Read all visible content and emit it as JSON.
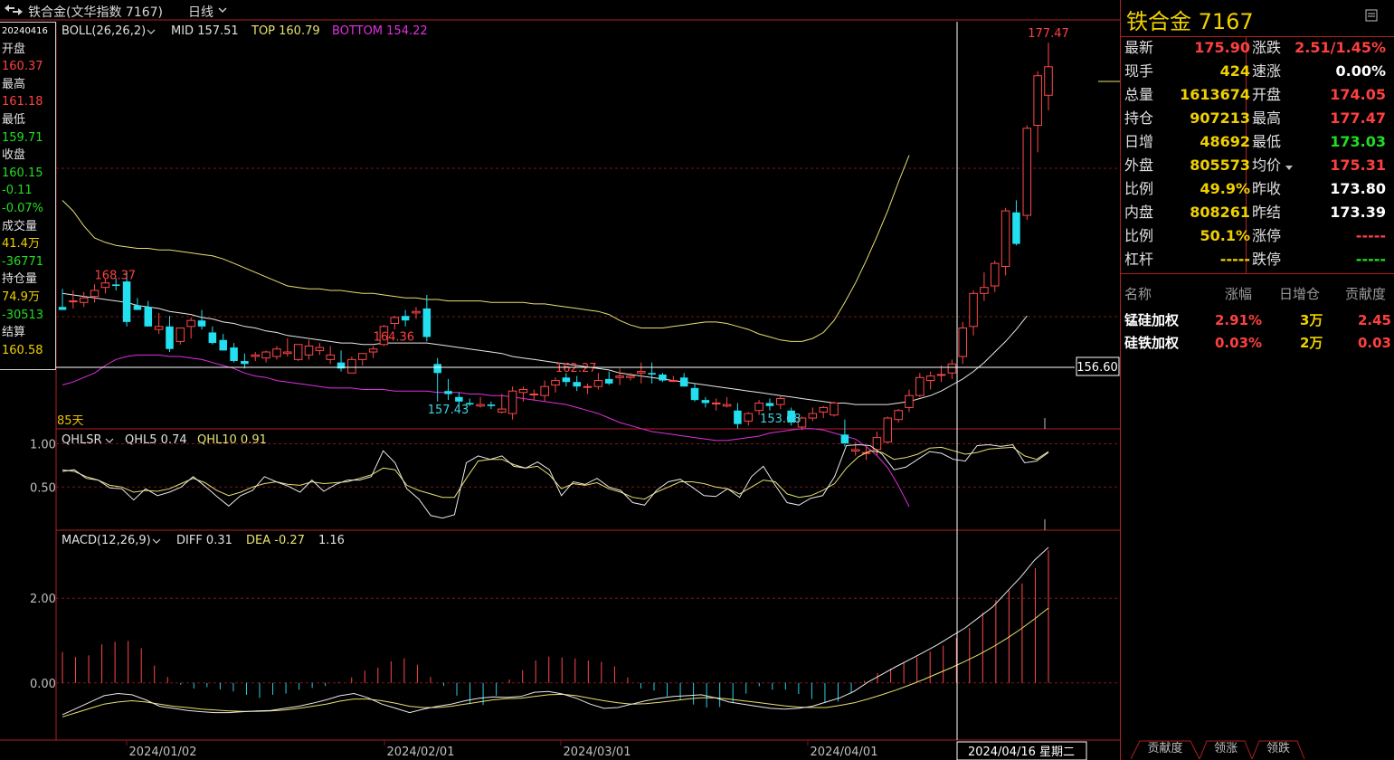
{
  "topbar": {
    "title": "铁合金(文华指数 7167)",
    "period": "日线",
    "period_icon": "chevron-down-icon"
  },
  "left_panel": [
    {
      "text": "20240416",
      "color": "#ffffff",
      "small": true
    },
    {
      "text": "开盘",
      "color": "#e0e0e0"
    },
    {
      "text": "160.37",
      "color": "#ff4040"
    },
    {
      "text": "最高",
      "color": "#e0e0e0"
    },
    {
      "text": "161.18",
      "color": "#ff4040"
    },
    {
      "text": "最低",
      "color": "#e0e0e0"
    },
    {
      "text": "159.71",
      "color": "#22dd22"
    },
    {
      "text": "收盘",
      "color": "#e0e0e0"
    },
    {
      "text": "160.15",
      "color": "#22dd22"
    },
    {
      "text": "-0.11",
      "color": "#22dd22"
    },
    {
      "text": "-0.07%",
      "color": "#22dd22"
    },
    {
      "text": "成交量",
      "color": "#e0e0e0"
    },
    {
      "text": "41.4万",
      "color": "#f0d000"
    },
    {
      "text": "-36771",
      "color": "#22dd22"
    },
    {
      "text": "持仓量",
      "color": "#e0e0e0"
    },
    {
      "text": "74.9万",
      "color": "#f0d000"
    },
    {
      "text": "-30513",
      "color": "#22dd22"
    },
    {
      "text": "结算",
      "color": "#e0e0e0"
    },
    {
      "text": "160.58",
      "color": "#f0d000"
    }
  ],
  "indicators": {
    "boll": {
      "name": "BOLL(26,26,2)",
      "mid": "MID 157.51",
      "top": "TOP 160.79",
      "bottom": "BOTTOM 154.22"
    },
    "qhlsr": {
      "name": "QHLSR",
      "qhl5": "QHL5 0.74",
      "qhl10": "QHL10 0.91"
    },
    "macd": {
      "name": "MACD(12,26,9)",
      "diff": "DIFF 0.31",
      "dea": "DEA -0.27",
      "macd": "1.16"
    }
  },
  "annotations": {
    "days": "85天",
    "crosshair_price": "156.60",
    "crosshair_date": "2024/04/16 星期二",
    "peaks": [
      "168.37",
      "164.36",
      "162.27",
      "177.47"
    ],
    "troughs": [
      "157.43",
      "153.68"
    ]
  },
  "axis": {
    "dates": [
      "2024/01/02",
      "2024/02/01",
      "2024/03/01",
      "2024/04/01"
    ],
    "qhlsr_ticks": [
      "1.00",
      "0.50"
    ],
    "macd_ticks": [
      "2.00",
      "0.00"
    ]
  },
  "quote": {
    "title": "铁合金  7167",
    "rows": [
      {
        "l": "最新",
        "lv": "175.90",
        "lc": "#ff4040",
        "r": "涨跌",
        "rv": "2.51/1.45%",
        "rc": "#ff4040"
      },
      {
        "l": "现手",
        "lv": "424",
        "lc": "#f0d000",
        "r": "速涨",
        "rv": "0.00%",
        "rc": "#ffffff"
      },
      {
        "l": "总量",
        "lv": "1613674",
        "lc": "#f0d000",
        "r": "开盘",
        "rv": "174.05",
        "rc": "#ff4040"
      },
      {
        "l": "持仓",
        "lv": "907213",
        "lc": "#f0d000",
        "r": "最高",
        "rv": "177.47",
        "rc": "#ff4040"
      },
      {
        "l": "日增",
        "lv": "48692",
        "lc": "#f0d000",
        "r": "最低",
        "rv": "173.03",
        "rc": "#22dd22"
      },
      {
        "l": "外盘",
        "lv": "805573",
        "lc": "#f0d000",
        "r": "均价",
        "rv": "175.31",
        "rc": "#ff4040"
      },
      {
        "l": "比例",
        "lv": "49.9%",
        "lc": "#f0d000",
        "r": "昨收",
        "rv": "173.80",
        "rc": "#ffffff"
      },
      {
        "l": "内盘",
        "lv": "808261",
        "lc": "#f0d000",
        "r": "昨结",
        "rv": "173.39",
        "rc": "#ffffff"
      },
      {
        "l": "比例",
        "lv": "50.1%",
        "lc": "#f0d000",
        "r": "涨停",
        "rv": "-----",
        "rc": "#ff4040"
      },
      {
        "l": "杠杆",
        "lv": "-----",
        "lc": "#f0d000",
        "r": "跌停",
        "rv": "-----",
        "rc": "#22dd22"
      }
    ],
    "avg_icon": "caret-down-icon"
  },
  "contrib": {
    "headers": [
      "名称",
      "涨幅",
      "日增仓",
      "贡献度"
    ],
    "rows": [
      {
        "name": "锰硅加权",
        "chg": "2.91%",
        "oi": "3万",
        "c": "2.45"
      },
      {
        "name": "硅铁加权",
        "chg": "0.03%",
        "oi": "2万",
        "c": "0.03"
      }
    ]
  },
  "tabs": [
    "贡献度",
    "领涨",
    "领跌"
  ],
  "chart_data": {
    "type": "candlestick",
    "title": "铁合金(文华指数 7167) 日线",
    "price_ylim": [
      151.9,
      178.9
    ],
    "candles": [
      [
        159.9,
        161.1,
        159.7,
        159.7
      ],
      [
        160.3,
        161.0,
        159.8,
        160.3
      ],
      [
        160.2,
        160.9,
        159.9,
        160.5
      ],
      [
        160.6,
        161.4,
        160.2,
        161.0
      ],
      [
        161.2,
        161.8,
        160.8,
        161.5
      ],
      [
        161.4,
        161.8,
        161.0,
        161.3
      ],
      [
        161.6,
        162.3,
        158.6,
        158.9
      ],
      [
        160.0,
        160.5,
        159.7,
        159.7
      ],
      [
        159.9,
        160.3,
        158.6,
        158.6
      ],
      [
        158.4,
        159.5,
        158.1,
        158.6
      ],
      [
        158.6,
        159.3,
        156.9,
        157.1
      ],
      [
        157.6,
        158.5,
        157.4,
        158.5
      ],
      [
        158.6,
        159.2,
        157.8,
        159.0
      ],
      [
        159.0,
        159.7,
        158.4,
        158.6
      ],
      [
        158.2,
        158.6,
        157.4,
        157.5
      ],
      [
        157.7,
        158.1,
        157.0,
        157.0
      ],
      [
        157.2,
        157.5,
        156.2,
        156.3
      ],
      [
        156.3,
        156.8,
        155.8,
        156.1
      ],
      [
        156.6,
        156.9,
        156.3,
        156.7
      ],
      [
        156.5,
        157.0,
        156.2,
        156.9
      ],
      [
        156.6,
        157.3,
        156.4,
        157.1
      ],
      [
        156.8,
        157.8,
        156.6,
        156.9
      ],
      [
        156.4,
        157.4,
        156.3,
        157.4
      ],
      [
        156.7,
        157.7,
        156.4,
        157.3
      ],
      [
        157.0,
        157.5,
        156.7,
        157.2
      ],
      [
        156.4,
        157.3,
        156.1,
        156.7
      ],
      [
        156.2,
        157.0,
        155.6,
        155.8
      ],
      [
        155.5,
        156.6,
        155.5,
        156.4
      ],
      [
        156.4,
        156.8,
        156.0,
        156.8
      ],
      [
        156.9,
        157.3,
        156.5,
        157.1
      ],
      [
        157.4,
        158.7,
        157.3,
        158.6
      ],
      [
        158.8,
        159.3,
        158.4,
        159.2
      ],
      [
        159.3,
        159.7,
        158.6,
        159.0
      ],
      [
        159.5,
        159.9,
        159.1,
        159.6
      ],
      [
        159.8,
        160.7,
        157.6,
        157.9
      ],
      [
        156.1,
        156.5,
        153.6,
        155.5
      ],
      [
        154.3,
        155.1,
        153.7,
        154.1
      ],
      [
        153.9,
        154.2,
        153.4,
        153.6
      ],
      [
        153.5,
        153.8,
        153.3,
        153.4
      ],
      [
        153.3,
        153.9,
        153.2,
        153.4
      ],
      [
        153.4,
        153.6,
        153.1,
        153.3
      ],
      [
        152.9,
        154.1,
        152.8,
        153.1
      ],
      [
        152.8,
        154.6,
        152.4,
        154.3
      ],
      [
        154.2,
        154.6,
        153.6,
        154.4
      ],
      [
        154.1,
        154.4,
        153.7,
        154.1
      ],
      [
        154.0,
        155.0,
        153.6,
        154.6
      ],
      [
        154.7,
        155.2,
        154.2,
        155.0
      ],
      [
        155.2,
        155.5,
        154.6,
        154.9
      ],
      [
        154.9,
        155.3,
        154.3,
        154.6
      ],
      [
        154.6,
        154.8,
        154.1,
        154.6
      ],
      [
        154.6,
        155.5,
        154.4,
        155.0
      ],
      [
        155.1,
        155.6,
        154.7,
        154.8
      ],
      [
        155.2,
        155.8,
        154.7,
        155.3
      ],
      [
        155.2,
        155.5,
        155.0,
        155.3
      ],
      [
        155.5,
        156.2,
        154.8,
        155.6
      ],
      [
        155.5,
        156.2,
        154.8,
        155.4
      ],
      [
        155.4,
        155.5,
        154.9,
        155.0
      ],
      [
        155.0,
        155.3,
        154.9,
        155.0
      ],
      [
        155.2,
        155.5,
        154.6,
        154.6
      ],
      [
        154.5,
        154.8,
        153.6,
        153.7
      ],
      [
        153.7,
        153.9,
        153.2,
        153.5
      ],
      [
        153.5,
        153.8,
        153.0,
        153.5
      ],
      [
        153.3,
        153.9,
        153.2,
        153.4
      ],
      [
        153.0,
        153.5,
        151.8,
        152.1
      ],
      [
        152.3,
        152.9,
        152.0,
        152.8
      ],
      [
        153.0,
        153.7,
        152.7,
        153.5
      ],
      [
        153.5,
        153.8,
        153.0,
        153.3
      ],
      [
        153.4,
        154.0,
        153.1,
        153.8
      ],
      [
        153.0,
        153.2,
        152.0,
        152.2
      ],
      [
        151.9,
        152.6,
        151.7,
        152.5
      ],
      [
        152.5,
        153.2,
        152.3,
        152.8
      ],
      [
        152.9,
        153.3,
        152.5,
        153.2
      ],
      [
        152.7,
        153.6,
        152.6,
        153.5
      ],
      [
        151.4,
        152.4,
        150.6,
        150.8
      ],
      [
        150.3,
        150.9,
        150.0,
        150.4
      ],
      [
        150.2,
        150.6,
        149.7,
        150.2
      ],
      [
        150.4,
        151.6,
        150.0,
        151.2
      ],
      [
        150.9,
        152.6,
        150.8,
        152.5
      ],
      [
        152.4,
        153.1,
        152.2,
        153.0
      ],
      [
        153.2,
        154.4,
        152.9,
        154.0
      ],
      [
        154.0,
        155.5,
        153.9,
        155.2
      ],
      [
        155.0,
        155.6,
        154.4,
        155.3
      ],
      [
        155.4,
        156.0,
        154.9,
        155.4
      ],
      [
        155.5,
        156.4,
        155.1,
        156.1
      ],
      [
        156.6,
        158.9,
        156.1,
        158.5
      ],
      [
        158.6,
        161.0,
        158.0,
        160.8
      ],
      [
        160.8,
        162.2,
        160.3,
        161.2
      ],
      [
        161.3,
        163.0,
        160.9,
        162.8
      ],
      [
        162.6,
        166.5,
        162.0,
        166.3
      ],
      [
        166.2,
        167.0,
        164.0,
        164.1
      ],
      [
        166.0,
        172.0,
        165.7,
        171.8
      ],
      [
        172.0,
        175.6,
        170.2,
        175.3
      ],
      [
        174.0,
        177.5,
        173.0,
        175.9
      ]
    ],
    "boll_mid": [
      160.8,
      160.7,
      160.6,
      160.5,
      160.4,
      160.3,
      160.2,
      160.0,
      159.9,
      159.8,
      159.6,
      159.5,
      159.4,
      159.2,
      159.1,
      158.9,
      158.8,
      158.6,
      158.5,
      158.3,
      158.2,
      158.0,
      157.9,
      157.8,
      157.7,
      157.6,
      157.5,
      157.5,
      157.4,
      157.4,
      157.5,
      157.5,
      157.5,
      157.5,
      157.5,
      157.4,
      157.3,
      157.2,
      157.1,
      157.0,
      156.9,
      156.8,
      156.6,
      156.5,
      156.4,
      156.3,
      156.2,
      156.1,
      156.0,
      155.9,
      155.8,
      155.7,
      155.5,
      155.4,
      155.3,
      155.2,
      155.1,
      155.0,
      154.9,
      154.8,
      154.7,
      154.6,
      154.5,
      154.4,
      154.3,
      154.2,
      154.1,
      154.0,
      153.9,
      153.8,
      153.7,
      153.6,
      153.5,
      153.5,
      153.4,
      153.4,
      153.4,
      153.4,
      153.5,
      153.6,
      153.8,
      154.0,
      154.3,
      154.7,
      155.1,
      155.6,
      156.2,
      156.9,
      157.6,
      158.4,
      159.3
    ],
    "boll_top": [
      167.0,
      166.3,
      165.3,
      164.5,
      164.2,
      164.0,
      163.9,
      163.8,
      163.8,
      163.7,
      163.7,
      163.6,
      163.5,
      163.4,
      163.3,
      163.1,
      162.8,
      162.5,
      162.2,
      161.9,
      161.6,
      161.3,
      161.2,
      161.1,
      161.1,
      161.0,
      161.0,
      160.9,
      160.8,
      160.8,
      160.7,
      160.6,
      160.5,
      160.5,
      160.4,
      160.4,
      160.3,
      160.3,
      160.3,
      160.3,
      160.2,
      160.2,
      160.2,
      160.2,
      160.1,
      160.1,
      160.0,
      159.9,
      159.8,
      159.7,
      159.6,
      159.4,
      159.0,
      158.7,
      158.5,
      158.5,
      158.5,
      158.6,
      158.7,
      158.8,
      158.9,
      158.9,
      158.8,
      158.6,
      158.4,
      158.1,
      157.9,
      157.7,
      157.6,
      157.6,
      157.8,
      158.2,
      159.0,
      160.2,
      161.5,
      163.0,
      164.6,
      166.3,
      168.2,
      170.0
    ],
    "boll_bottom": [
      154.7,
      154.9,
      155.2,
      155.5,
      156.0,
      156.4,
      156.6,
      156.7,
      156.7,
      156.7,
      156.6,
      156.6,
      156.5,
      156.4,
      156.2,
      156.0,
      155.8,
      155.5,
      155.3,
      155.2,
      155.0,
      154.9,
      154.8,
      154.7,
      154.6,
      154.5,
      154.5,
      154.5,
      154.4,
      154.4,
      154.4,
      154.3,
      154.3,
      154.3,
      154.3,
      154.2,
      154.2,
      154.2,
      154.1,
      154.1,
      154.0,
      154.0,
      153.9,
      153.8,
      153.7,
      153.6,
      153.5,
      153.4,
      153.2,
      153.0,
      152.8,
      152.5,
      152.2,
      152.0,
      151.8,
      151.6,
      151.5,
      151.4,
      151.3,
      151.2,
      151.1,
      151.0,
      151.0,
      151.1,
      151.2,
      151.3,
      151.5,
      151.6,
      151.7,
      151.8,
      151.8,
      151.7,
      151.5,
      151.3,
      151.1,
      150.6,
      150.0,
      149.2,
      148.0,
      146.6
    ],
    "qhlsr_ylim": [
      0,
      1.1
    ],
    "qhl5": [
      0.68,
      0.7,
      0.6,
      0.58,
      0.49,
      0.48,
      0.35,
      0.48,
      0.4,
      0.44,
      0.5,
      0.62,
      0.51,
      0.39,
      0.28,
      0.4,
      0.46,
      0.62,
      0.56,
      0.51,
      0.44,
      0.58,
      0.45,
      0.53,
      0.58,
      0.58,
      0.62,
      0.92,
      0.78,
      0.48,
      0.36,
      0.17,
      0.14,
      0.18,
      0.78,
      0.86,
      0.82,
      0.86,
      0.74,
      0.72,
      0.79,
      0.7,
      0.4,
      0.56,
      0.53,
      0.6,
      0.5,
      0.46,
      0.32,
      0.29,
      0.46,
      0.56,
      0.59,
      0.5,
      0.4,
      0.39,
      0.48,
      0.38,
      0.62,
      0.74,
      0.52,
      0.32,
      0.29,
      0.37,
      0.4,
      0.62,
      0.98,
      0.99,
      0.98,
      0.88,
      0.7,
      0.73,
      0.82,
      0.91,
      0.89,
      0.82,
      0.8,
      0.98,
      0.99,
      0.97,
      0.99,
      0.78,
      0.8,
      0.9
    ],
    "qhl10": [
      0.7,
      0.68,
      0.62,
      0.58,
      0.52,
      0.5,
      0.44,
      0.46,
      0.45,
      0.48,
      0.54,
      0.6,
      0.55,
      0.46,
      0.4,
      0.44,
      0.5,
      0.54,
      0.56,
      0.53,
      0.52,
      0.56,
      0.54,
      0.55,
      0.56,
      0.6,
      0.64,
      0.72,
      0.7,
      0.52,
      0.46,
      0.42,
      0.38,
      0.38,
      0.6,
      0.8,
      0.82,
      0.82,
      0.76,
      0.72,
      0.74,
      0.64,
      0.48,
      0.54,
      0.52,
      0.55,
      0.48,
      0.44,
      0.38,
      0.36,
      0.44,
      0.5,
      0.56,
      0.56,
      0.54,
      0.5,
      0.48,
      0.42,
      0.5,
      0.58,
      0.56,
      0.42,
      0.38,
      0.4,
      0.46,
      0.54,
      0.72,
      0.85,
      0.92,
      0.9,
      0.82,
      0.84,
      0.88,
      0.95,
      0.96,
      0.92,
      0.88,
      0.9,
      0.94,
      0.95,
      0.96,
      0.86,
      0.82,
      0.91
    ],
    "macd_ylim": [
      -1.35,
      3.35
    ],
    "macd_hist": [
      0.73,
      0.61,
      0.65,
      0.91,
      0.97,
      0.99,
      0.82,
      0.41,
      0.14,
      -0.04,
      -0.13,
      -0.1,
      -0.15,
      -0.2,
      -0.28,
      -0.35,
      -0.28,
      -0.25,
      -0.16,
      -0.12,
      -0.07,
      0.02,
      0.13,
      0.29,
      0.36,
      0.51,
      0.58,
      0.43,
      0.14,
      -0.07,
      -0.3,
      -0.5,
      -0.52,
      -0.3,
      0.08,
      0.3,
      0.53,
      0.62,
      0.6,
      0.58,
      0.53,
      0.5,
      0.39,
      0.13,
      -0.13,
      -0.18,
      -0.32,
      -0.41,
      -0.51,
      -0.58,
      -0.57,
      -0.48,
      -0.25,
      -0.08,
      -0.16,
      -0.16,
      -0.26,
      -0.38,
      -0.45,
      -0.44,
      -0.25,
      0.05,
      0.23,
      0.34,
      0.49,
      0.61,
      0.74,
      0.88,
      1.07,
      1.3,
      1.66,
      1.96,
      2.18,
      2.35,
      2.71,
      3.13
    ],
    "macd_diff": [
      -0.75,
      -0.6,
      -0.45,
      -0.3,
      -0.25,
      -0.28,
      -0.4,
      -0.55,
      -0.6,
      -0.65,
      -0.68,
      -0.7,
      -0.7,
      -0.68,
      -0.66,
      -0.65,
      -0.6,
      -0.55,
      -0.48,
      -0.4,
      -0.3,
      -0.25,
      -0.35,
      -0.5,
      -0.6,
      -0.7,
      -0.62,
      -0.55,
      -0.5,
      -0.42,
      -0.36,
      -0.33,
      -0.34,
      -0.32,
      -0.22,
      -0.2,
      -0.26,
      -0.36,
      -0.5,
      -0.6,
      -0.58,
      -0.5,
      -0.42,
      -0.36,
      -0.32,
      -0.3,
      -0.28,
      -0.35,
      -0.45,
      -0.5,
      -0.55,
      -0.6,
      -0.62,
      -0.6,
      -0.55,
      -0.45,
      -0.35,
      -0.2,
      0.02,
      0.2,
      0.38,
      0.55,
      0.72,
      0.9,
      1.1,
      1.3,
      1.55,
      1.8,
      2.15,
      2.5,
      2.9,
      3.2
    ],
    "macd_dea": [
      -0.8,
      -0.7,
      -0.6,
      -0.5,
      -0.45,
      -0.42,
      -0.45,
      -0.5,
      -0.55,
      -0.58,
      -0.62,
      -0.64,
      -0.66,
      -0.67,
      -0.67,
      -0.66,
      -0.64,
      -0.6,
      -0.55,
      -0.5,
      -0.43,
      -0.38,
      -0.38,
      -0.42,
      -0.48,
      -0.55,
      -0.58,
      -0.58,
      -0.55,
      -0.5,
      -0.45,
      -0.4,
      -0.37,
      -0.36,
      -0.32,
      -0.28,
      -0.27,
      -0.3,
      -0.36,
      -0.42,
      -0.47,
      -0.5,
      -0.49,
      -0.46,
      -0.42,
      -0.38,
      -0.35,
      -0.35,
      -0.38,
      -0.42,
      -0.46,
      -0.5,
      -0.54,
      -0.57,
      -0.58,
      -0.58,
      -0.53,
      -0.47,
      -0.38,
      -0.28,
      -0.17,
      -0.05,
      0.08,
      0.22,
      0.36,
      0.51,
      0.67,
      0.85,
      1.05,
      1.27,
      1.51,
      1.77
    ]
  }
}
